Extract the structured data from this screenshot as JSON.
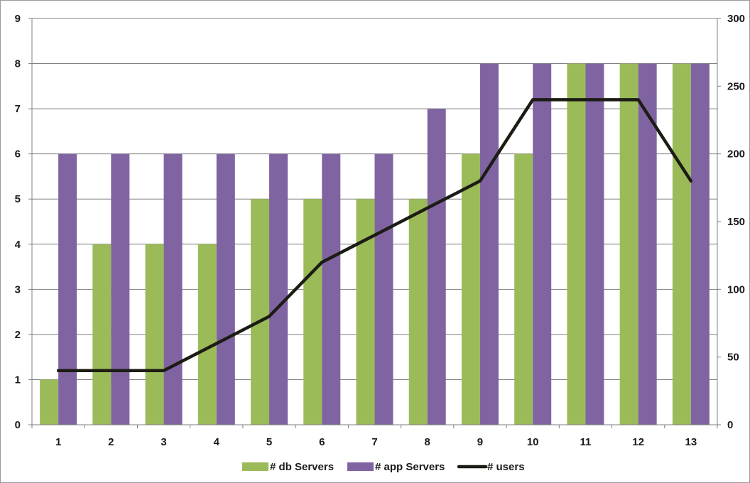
{
  "chart_data": {
    "type": "bar",
    "categories": [
      "1",
      "2",
      "3",
      "4",
      "5",
      "6",
      "7",
      "8",
      "9",
      "10",
      "11",
      "12",
      "13"
    ],
    "series": [
      {
        "name": "# db Servers",
        "kind": "bar",
        "axis": "left",
        "color": "#9bbb59",
        "values": [
          1,
          4,
          4,
          4,
          5,
          5,
          5,
          5,
          6,
          6,
          8,
          8,
          8
        ]
      },
      {
        "name": "# app Servers",
        "kind": "bar",
        "axis": "left",
        "color": "#8064a2",
        "values": [
          6,
          6,
          6,
          6,
          6,
          6,
          6,
          7,
          8,
          8,
          8,
          8,
          8
        ]
      },
      {
        "name": "# users",
        "kind": "line",
        "axis": "right",
        "color": "#1c1c14",
        "values": [
          40,
          40,
          40,
          60,
          80,
          120,
          140,
          160,
          180,
          240,
          240,
          240,
          180
        ]
      }
    ],
    "y_left": {
      "ylim": [
        0,
        9
      ],
      "ticks": [
        "0",
        "1",
        "2",
        "3",
        "4",
        "5",
        "6",
        "7",
        "8",
        "9"
      ]
    },
    "y_right": {
      "ylim": [
        0,
        300
      ],
      "ticks": [
        "0",
        "50",
        "100",
        "150",
        "200",
        "250",
        "300"
      ]
    },
    "grid": true,
    "legend_position": "bottom",
    "title": "",
    "xlabel": "",
    "ylabel": ""
  }
}
